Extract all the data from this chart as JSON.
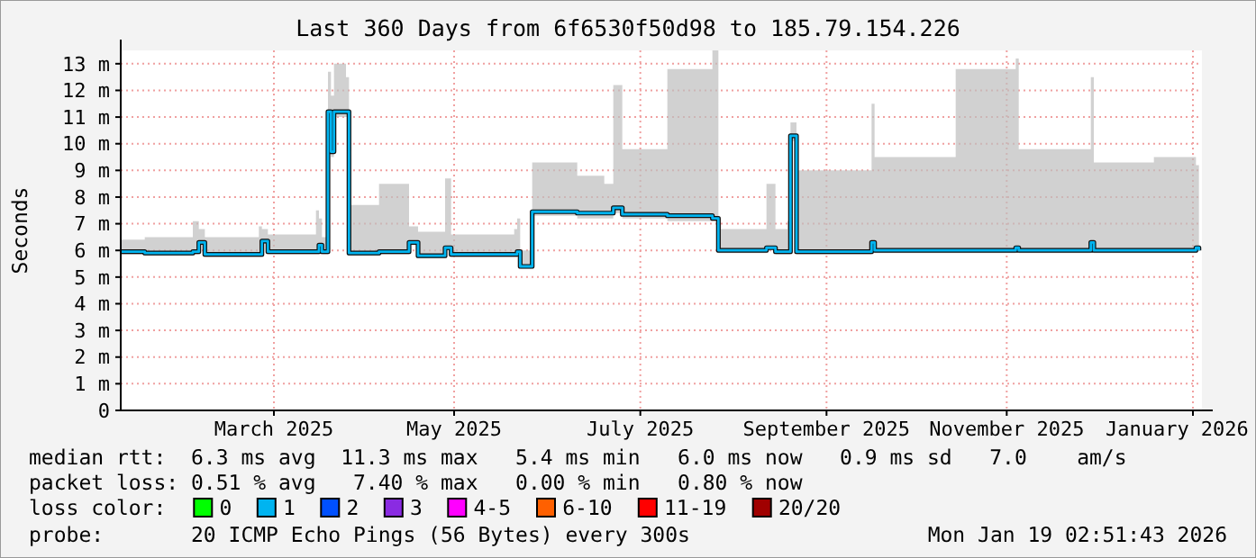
{
  "chart_data": {
    "type": "step",
    "title": "Last 360 Days from 6f6530f50d98 to 185.79.154.226",
    "ylabel": "Seconds",
    "xlim": [
      "2025-01-24",
      "2026-01-19"
    ],
    "xticks": [
      {
        "value": "2025-03-16",
        "label": "March 2025"
      },
      {
        "value": "2025-05-15",
        "label": "May 2025"
      },
      {
        "value": "2025-07-16",
        "label": "July 2025"
      },
      {
        "value": "2025-09-16",
        "label": "September 2025"
      },
      {
        "value": "2025-11-15",
        "label": "November 2025"
      },
      {
        "value": "2026-01-16",
        "label": "January 2026"
      }
    ],
    "ylim": [
      0,
      13.5
    ],
    "yticks": [
      0,
      {
        "value": 1,
        "label": "1 m"
      },
      {
        "value": 2,
        "label": "2 m"
      },
      {
        "value": 3,
        "label": "3 m"
      },
      {
        "value": 4,
        "label": "4 m"
      },
      {
        "value": 5,
        "label": "5 m"
      },
      {
        "value": 6,
        "label": "6 m"
      },
      {
        "value": 7,
        "label": "7 m"
      },
      {
        "value": 8,
        "label": "8 m"
      },
      {
        "value": 9,
        "label": "9 m"
      },
      {
        "value": 10,
        "label": "10 m"
      },
      {
        "value": 11,
        "label": "11 m"
      },
      {
        "value": 12,
        "label": "12 m"
      },
      {
        "value": 13,
        "label": "13 m"
      }
    ],
    "grid": true,
    "x": [
      "2025-01-24",
      "2025-02-01",
      "2025-02-17",
      "2025-02-19",
      "2025-02-21",
      "2025-03-11",
      "2025-03-12",
      "2025-03-14",
      "2025-03-30",
      "2025-03-31",
      "2025-04-01",
      "2025-04-02",
      "2025-04-03",
      "2025-04-04",
      "2025-04-05",
      "2025-04-09",
      "2025-04-10",
      "2025-04-20",
      "2025-04-30",
      "2025-05-03",
      "2025-05-12",
      "2025-05-14",
      "2025-06-04",
      "2025-06-05",
      "2025-06-06",
      "2025-06-09",
      "2025-06-10",
      "2025-06-25",
      "2025-07-04",
      "2025-07-07",
      "2025-07-10",
      "2025-07-25",
      "2025-08-09",
      "2025-08-11",
      "2025-08-27",
      "2025-08-30",
      "2025-09-03",
      "2025-09-04",
      "2025-09-06",
      "2025-10-01",
      "2025-10-02",
      "2025-10-29",
      "2025-11-18",
      "2025-11-19",
      "2025-12-13",
      "2025-12-14",
      "2026-01-03",
      "2026-01-17",
      "2026-01-18"
    ],
    "series": [
      {
        "color": "#00b4f0",
        "values": [
          5.95,
          5.9,
          5.95,
          6.3,
          5.85,
          5.85,
          6.35,
          5.95,
          5.95,
          6.2,
          5.95,
          5.95,
          11.2,
          9.7,
          11.2,
          11.2,
          5.9,
          5.95,
          6.3,
          5.8,
          6.1,
          5.85,
          5.85,
          5.95,
          5.4,
          5.4,
          7.45,
          7.4,
          7.4,
          7.6,
          7.35,
          7.3,
          7.2,
          6.0,
          6.1,
          5.95,
          5.95,
          10.3,
          5.95,
          6.3,
          6.0,
          6.0,
          6.1,
          6.0,
          6.3,
          6.0,
          6.0,
          6.1,
          6.0
        ],
        "lower": [
          5.85,
          5.8,
          5.85,
          6.2,
          5.75,
          5.75,
          6.25,
          5.85,
          5.85,
          6.1,
          5.85,
          5.85,
          11.0,
          9.5,
          11.0,
          11.0,
          5.8,
          5.85,
          6.2,
          5.7,
          6.0,
          5.75,
          5.75,
          5.85,
          5.3,
          5.3,
          7.3,
          7.2,
          7.2,
          7.4,
          7.2,
          7.1,
          7.1,
          5.9,
          6.0,
          5.85,
          5.85,
          10.1,
          5.85,
          6.2,
          5.9,
          5.9,
          6.0,
          5.9,
          6.2,
          5.9,
          5.9,
          6.0,
          5.9
        ],
        "upper": [
          6.4,
          6.5,
          7.1,
          6.8,
          6.5,
          6.9,
          6.8,
          6.6,
          7.5,
          7.2,
          6.5,
          6.5,
          12.7,
          11.8,
          13.0,
          12.5,
          7.7,
          8.5,
          6.9,
          6.7,
          8.7,
          6.6,
          6.8,
          7.2,
          6.0,
          6.0,
          9.3,
          8.8,
          8.5,
          12.2,
          9.8,
          12.8,
          13.5,
          6.8,
          8.5,
          6.8,
          7.1,
          10.8,
          9.0,
          11.5,
          9.5,
          12.8,
          13.2,
          9.8,
          12.5,
          9.3,
          9.5,
          9.2,
          7.1
        ]
      }
    ],
    "annotations": [
      "median rtt:  6.3 ms avg  11.3 ms max   5.4 ms min   6.0 ms now   0.9 ms sd   7.0    am/s",
      "packet loss: 0.51 % avg   7.40 % max   0.00 % min   0.80 % now",
      "loss color:",
      "0",
      "1",
      "2",
      "3",
      "4-5",
      "6-10",
      "11-19",
      "20/20",
      "probe:       20 ICMP Echo Pings (56 Bytes) every 300s",
      "Mon Jan 19 02:51:43 2026"
    ]
  }
}
